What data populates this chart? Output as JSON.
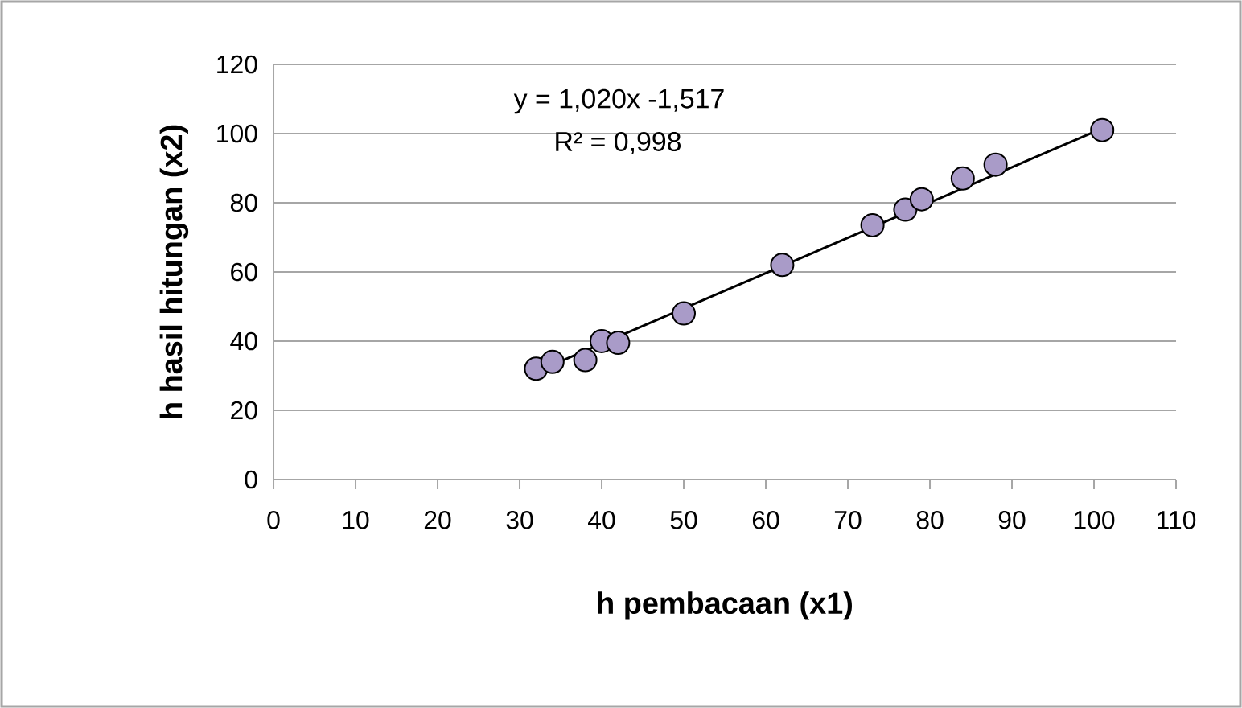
{
  "chart_data": {
    "type": "scatter",
    "xlabel": "h pembacaan (x1)",
    "ylabel": "h hasil hitungan (x2)",
    "annotations": [
      "y = 1,020x -1,517",
      "R² = 0,998"
    ],
    "series": [
      {
        "color": "#a99bc8",
        "marker": "circle",
        "x": [
          32,
          34,
          38,
          40,
          42,
          50,
          62,
          73,
          77,
          79,
          84,
          88,
          101
        ],
        "values": [
          32,
          34,
          34.5,
          40,
          39.5,
          48,
          62,
          73.5,
          78,
          81,
          87,
          91,
          101
        ]
      },
      {
        "type": "line",
        "color": "#000000",
        "marker": "none",
        "x": [
          32,
          101
        ],
        "values": [
          31.1,
          101.5
        ]
      }
    ],
    "xlim": [
      0,
      110
    ],
    "ylim": [
      0,
      120
    ],
    "xticks": [
      0,
      10,
      20,
      30,
      40,
      50,
      60,
      70,
      80,
      90,
      100,
      110
    ],
    "yticks": [
      0,
      20,
      40,
      60,
      80,
      100,
      120
    ],
    "grid": "y"
  }
}
